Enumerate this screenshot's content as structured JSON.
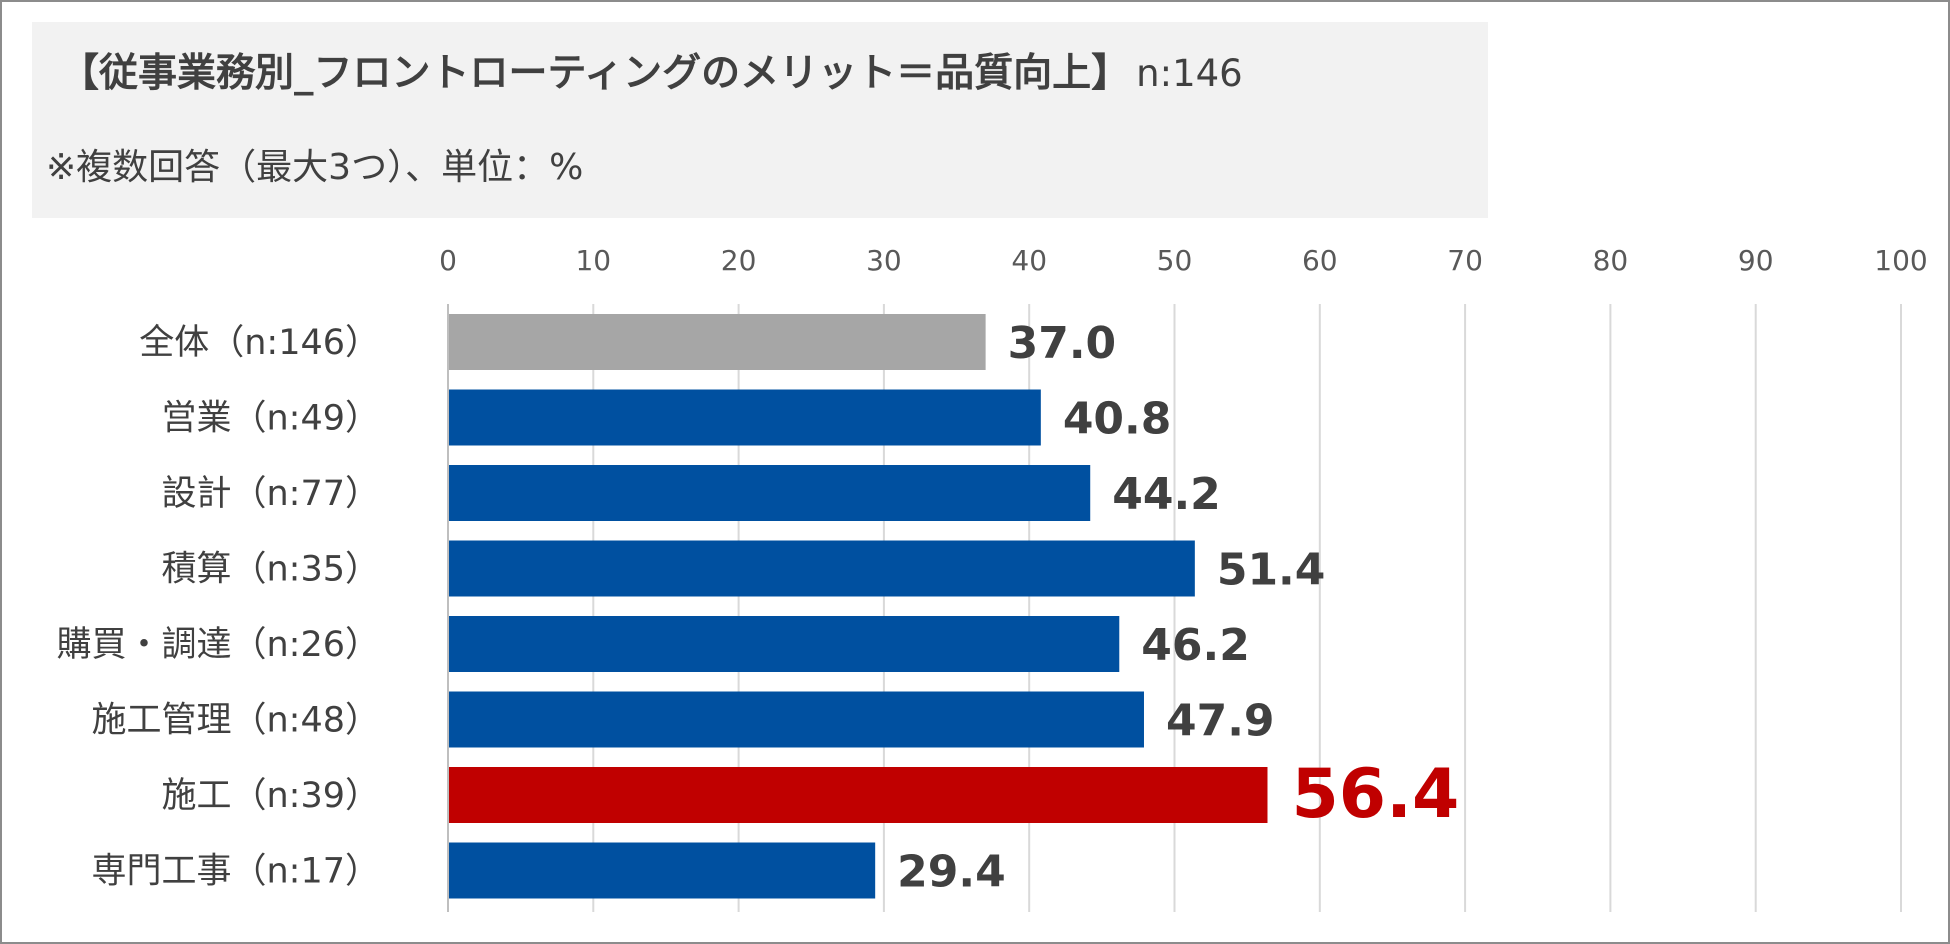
{
  "chart_data": {
    "type": "bar",
    "orientation": "horizontal",
    "title": "【従事業務別_フロントローティングのメリット＝品質向上】",
    "sample_size": "n:146",
    "subtitle": "※複数回答（最大3つ）、単位：%",
    "xlim": [
      0,
      100
    ],
    "x_ticks": [
      "0",
      "10",
      "20",
      "30",
      "40",
      "50",
      "60",
      "70",
      "80",
      "90",
      "100"
    ],
    "grid": true,
    "legend": "none",
    "categories": [
      "全体（n:146）",
      "営業（n:49）",
      "設計（n:77）",
      "積算（n:35）",
      "購買・調達（n:26）",
      "施工管理（n:48）",
      "施工（n:39）",
      "専門工事（n:17）"
    ],
    "values": [
      37.0,
      40.8,
      44.2,
      51.4,
      46.2,
      47.9,
      56.4,
      29.4
    ],
    "value_labels": [
      "37.0",
      "40.8",
      "44.2",
      "51.4",
      "46.2",
      "47.9",
      "56.4",
      "29.4"
    ],
    "bar_colors": [
      "#a6a6a6",
      "#0050a0",
      "#0050a0",
      "#0050a0",
      "#0050a0",
      "#0050a0",
      "#c00000",
      "#0050a0"
    ],
    "label_colors": [
      "#404040",
      "#404040",
      "#404040",
      "#404040",
      "#404040",
      "#404040",
      "#c00000",
      "#404040"
    ],
    "highlight_index": 6
  }
}
